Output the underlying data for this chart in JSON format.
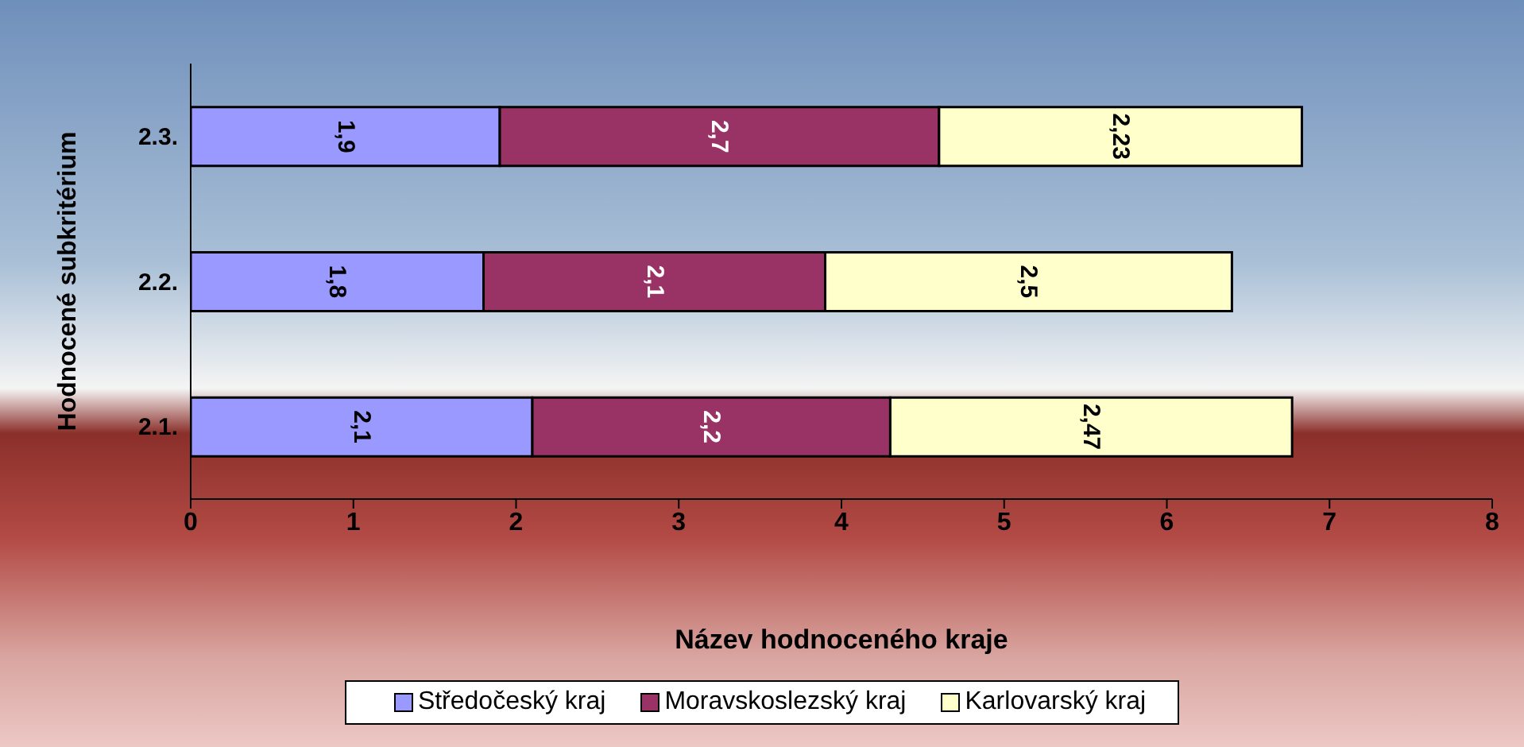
{
  "chart_data": {
    "type": "bar",
    "orientation": "horizontal",
    "stacked": true,
    "xlabel": "Název hodnoceného kraje",
    "ylabel": "Hodnocené subkritérium",
    "categories": [
      "2.3.",
      "2.2.",
      "2.1."
    ],
    "series": [
      {
        "name": "Středočeský kraj",
        "color": "#9999ff",
        "values": [
          1.9,
          1.8,
          2.1
        ],
        "value_labels": [
          "1,9",
          "1,8",
          "2,1"
        ]
      },
      {
        "name": "Moravskoslezský kraj",
        "color": "#993366",
        "values": [
          2.7,
          2.1,
          2.2
        ],
        "value_labels": [
          "2,7",
          "2,1",
          "2,2"
        ]
      },
      {
        "name": "Karlovarský kraj",
        "color": "#ffffcc",
        "values": [
          2.23,
          2.5,
          2.47
        ],
        "value_labels": [
          "2,23",
          "2,5",
          "2,47"
        ]
      }
    ],
    "xlim": [
      0,
      8
    ],
    "xticks": [
      0,
      1,
      2,
      3,
      4,
      5,
      6,
      7,
      8
    ],
    "grid": false,
    "legend": "bottom"
  }
}
